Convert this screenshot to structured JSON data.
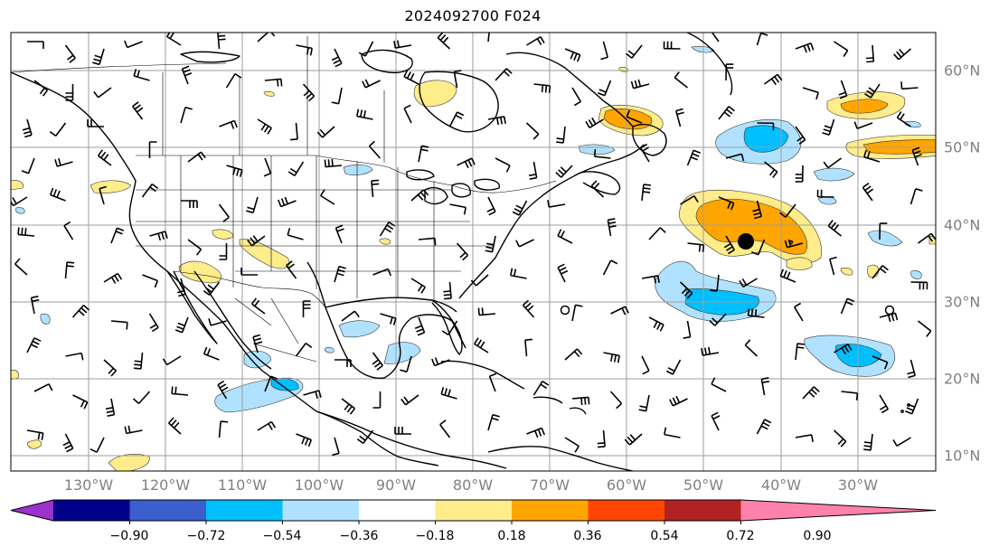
{
  "title": "2024092700 F024",
  "longitude_labels": [
    "130°W",
    "120°W",
    "110°W",
    "100°W",
    "90°W",
    "80°W",
    "70°W",
    "60°W",
    "50°W",
    "40°W",
    "30°W"
  ],
  "latitude_labels": [
    "60°N",
    "50°N",
    "40°N",
    "30°N",
    "20°N",
    "10°N"
  ],
  "colorbar": {
    "ticks": [
      "−0.90",
      "−0.72",
      "−0.54",
      "−0.36",
      "−0.18",
      "0.18",
      "0.36",
      "0.54",
      "0.72",
      "0.90"
    ],
    "colors": [
      "#9a32cd",
      "#00008b",
      "#3a5fcd",
      "#00bfff",
      "#b0e2ff",
      "#ffffff",
      "#ffec8b",
      "#ffa500",
      "#ff4500",
      "#b22222",
      "#ff82ab"
    ]
  },
  "markers": {
    "storm_center": "filled-circle",
    "small_circles": "open-circle"
  }
}
